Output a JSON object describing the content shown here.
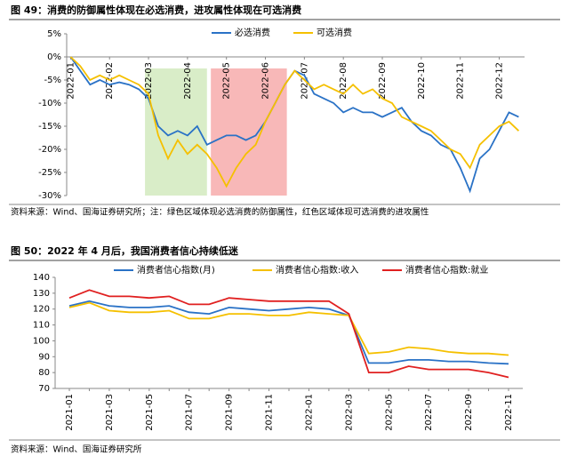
{
  "chart_data": [
    {
      "type": "line",
      "title": "图 49：消费的防御属性体现在必选消费，进攻属性体现在可选消费",
      "source": "资料来源：Wind、国海证券研究所；注：绿色区域体现必选消费的防御属性，红色区域体现可选消费的进攻属性",
      "legend_position": "top",
      "x": [
        0,
        0.25,
        0.5,
        0.75,
        1,
        1.25,
        1.5,
        1.75,
        2,
        2.25,
        2.5,
        2.75,
        3,
        3.25,
        3.5,
        3.75,
        4,
        4.25,
        4.5,
        4.75,
        5,
        5.25,
        5.5,
        5.75,
        6,
        6.25,
        6.5,
        6.75,
        7,
        7.25,
        7.5,
        7.75,
        8,
        8.25,
        8.5,
        8.75,
        9,
        9.25,
        9.5,
        9.75,
        10,
        10.25,
        10.5,
        10.75,
        11,
        11.25,
        11.5
      ],
      "xlim": [
        -0.1,
        11.65
      ],
      "xticks": [
        {
          "value": 0,
          "label": "2022-01"
        },
        {
          "value": 1,
          "label": "2022-02"
        },
        {
          "value": 2,
          "label": "2022-03"
        },
        {
          "value": 3,
          "label": "2022-04"
        },
        {
          "value": 4,
          "label": "2022-05"
        },
        {
          "value": 5,
          "label": "2022-06"
        },
        {
          "value": 6,
          "label": "2022-07"
        },
        {
          "value": 7,
          "label": "2022-08"
        },
        {
          "value": 8,
          "label": "2022-09"
        },
        {
          "value": 9,
          "label": "2022-10"
        },
        {
          "value": 10,
          "label": "2022-11"
        },
        {
          "value": 11,
          "label": "2022-12"
        }
      ],
      "ylim": [
        -30,
        5
      ],
      "yticks": [
        {
          "value": 5,
          "label": "5%"
        },
        {
          "value": 0,
          "label": "0%"
        },
        {
          "value": -5,
          "label": "-5%"
        },
        {
          "value": -10,
          "label": "-10%"
        },
        {
          "value": -15,
          "label": "-15%"
        },
        {
          "value": -20,
          "label": "-20%"
        },
        {
          "value": -25,
          "label": "-25%"
        },
        {
          "value": -30,
          "label": "-30%"
        }
      ],
      "regions": [
        {
          "x": [
            1.91,
            3.5
          ],
          "y": [
            -2.5,
            -30
          ],
          "color": "#d9edc8"
        },
        {
          "x": [
            3.6,
            5.55
          ],
          "y": [
            -2.5,
            -30
          ],
          "color": "#f8b8b8"
        }
      ],
      "series": [
        {
          "name": "必选消费",
          "color": "#2a72c6",
          "values": [
            0,
            -3,
            -6,
            -5,
            -6,
            -5.5,
            -6,
            -7,
            -9,
            -15,
            -17,
            -16,
            -17,
            -15,
            -19,
            -18,
            -17,
            -17,
            -18,
            -17,
            -14,
            -10,
            -6,
            -3,
            -4,
            -8,
            -9,
            -10,
            -12,
            -11,
            -12,
            -12,
            -13,
            -12,
            -11,
            -14,
            -16,
            -17,
            -19,
            -20,
            -24,
            -29,
            -22,
            -20,
            -16,
            -12,
            -13
          ]
        },
        {
          "name": "可选消费",
          "color": "#f5c000",
          "values": [
            0,
            -2,
            -5,
            -4,
            -5,
            -4,
            -5,
            -6,
            -8,
            -17,
            -22,
            -18,
            -21,
            -19,
            -21,
            -24,
            -28,
            -24,
            -21,
            -19,
            -14,
            -10,
            -6,
            -3,
            -5,
            -7,
            -6,
            -7,
            -8,
            -6,
            -8,
            -7,
            -9,
            -10,
            -13,
            -14,
            -15,
            -16,
            -18,
            -20,
            -21,
            -24,
            -19,
            -17,
            -15,
            -14,
            -16
          ]
        }
      ]
    },
    {
      "type": "line",
      "title": "图 50：2022 年 4 月后，我国消费者信心持续低迷",
      "source": "资料来源：Wind、国海证券研究所",
      "legend_position": "top",
      "categories": [
        "2021-01",
        null,
        "2021-03",
        null,
        "2021-05",
        null,
        "2021-07",
        null,
        "2021-09",
        null,
        "2021-11",
        null,
        "2022-01",
        null,
        "2022-03",
        null,
        "2022-05",
        null,
        "2022-07",
        null,
        "2022-09",
        null,
        "2022-11"
      ],
      "ylim": [
        70,
        140
      ],
      "yticks": [
        70,
        80,
        90,
        100,
        110,
        120,
        130,
        140
      ],
      "series": [
        {
          "name": "消费者信心指数(月)",
          "color": "#2a72c6",
          "values": [
            122,
            125,
            122,
            121,
            121,
            122,
            118,
            117,
            121,
            120,
            119,
            120,
            121,
            120,
            116,
            86,
            86,
            88,
            88,
            87,
            87,
            86,
            85.5
          ]
        },
        {
          "name": "消费者信心指数:收入",
          "color": "#f5c000",
          "values": [
            121,
            124,
            119,
            118,
            118,
            119,
            114,
            114,
            117,
            117,
            116,
            116,
            118,
            117,
            116,
            92,
            93,
            96,
            95,
            93,
            92,
            92,
            91
          ]
        },
        {
          "name": "消费者信心指数:就业",
          "color": "#e02020",
          "values": [
            127,
            132,
            128,
            128,
            127,
            128,
            123,
            123,
            127,
            126,
            125,
            125,
            125,
            125,
            117,
            80,
            80,
            84,
            82,
            82,
            82,
            80,
            77
          ]
        }
      ]
    }
  ]
}
